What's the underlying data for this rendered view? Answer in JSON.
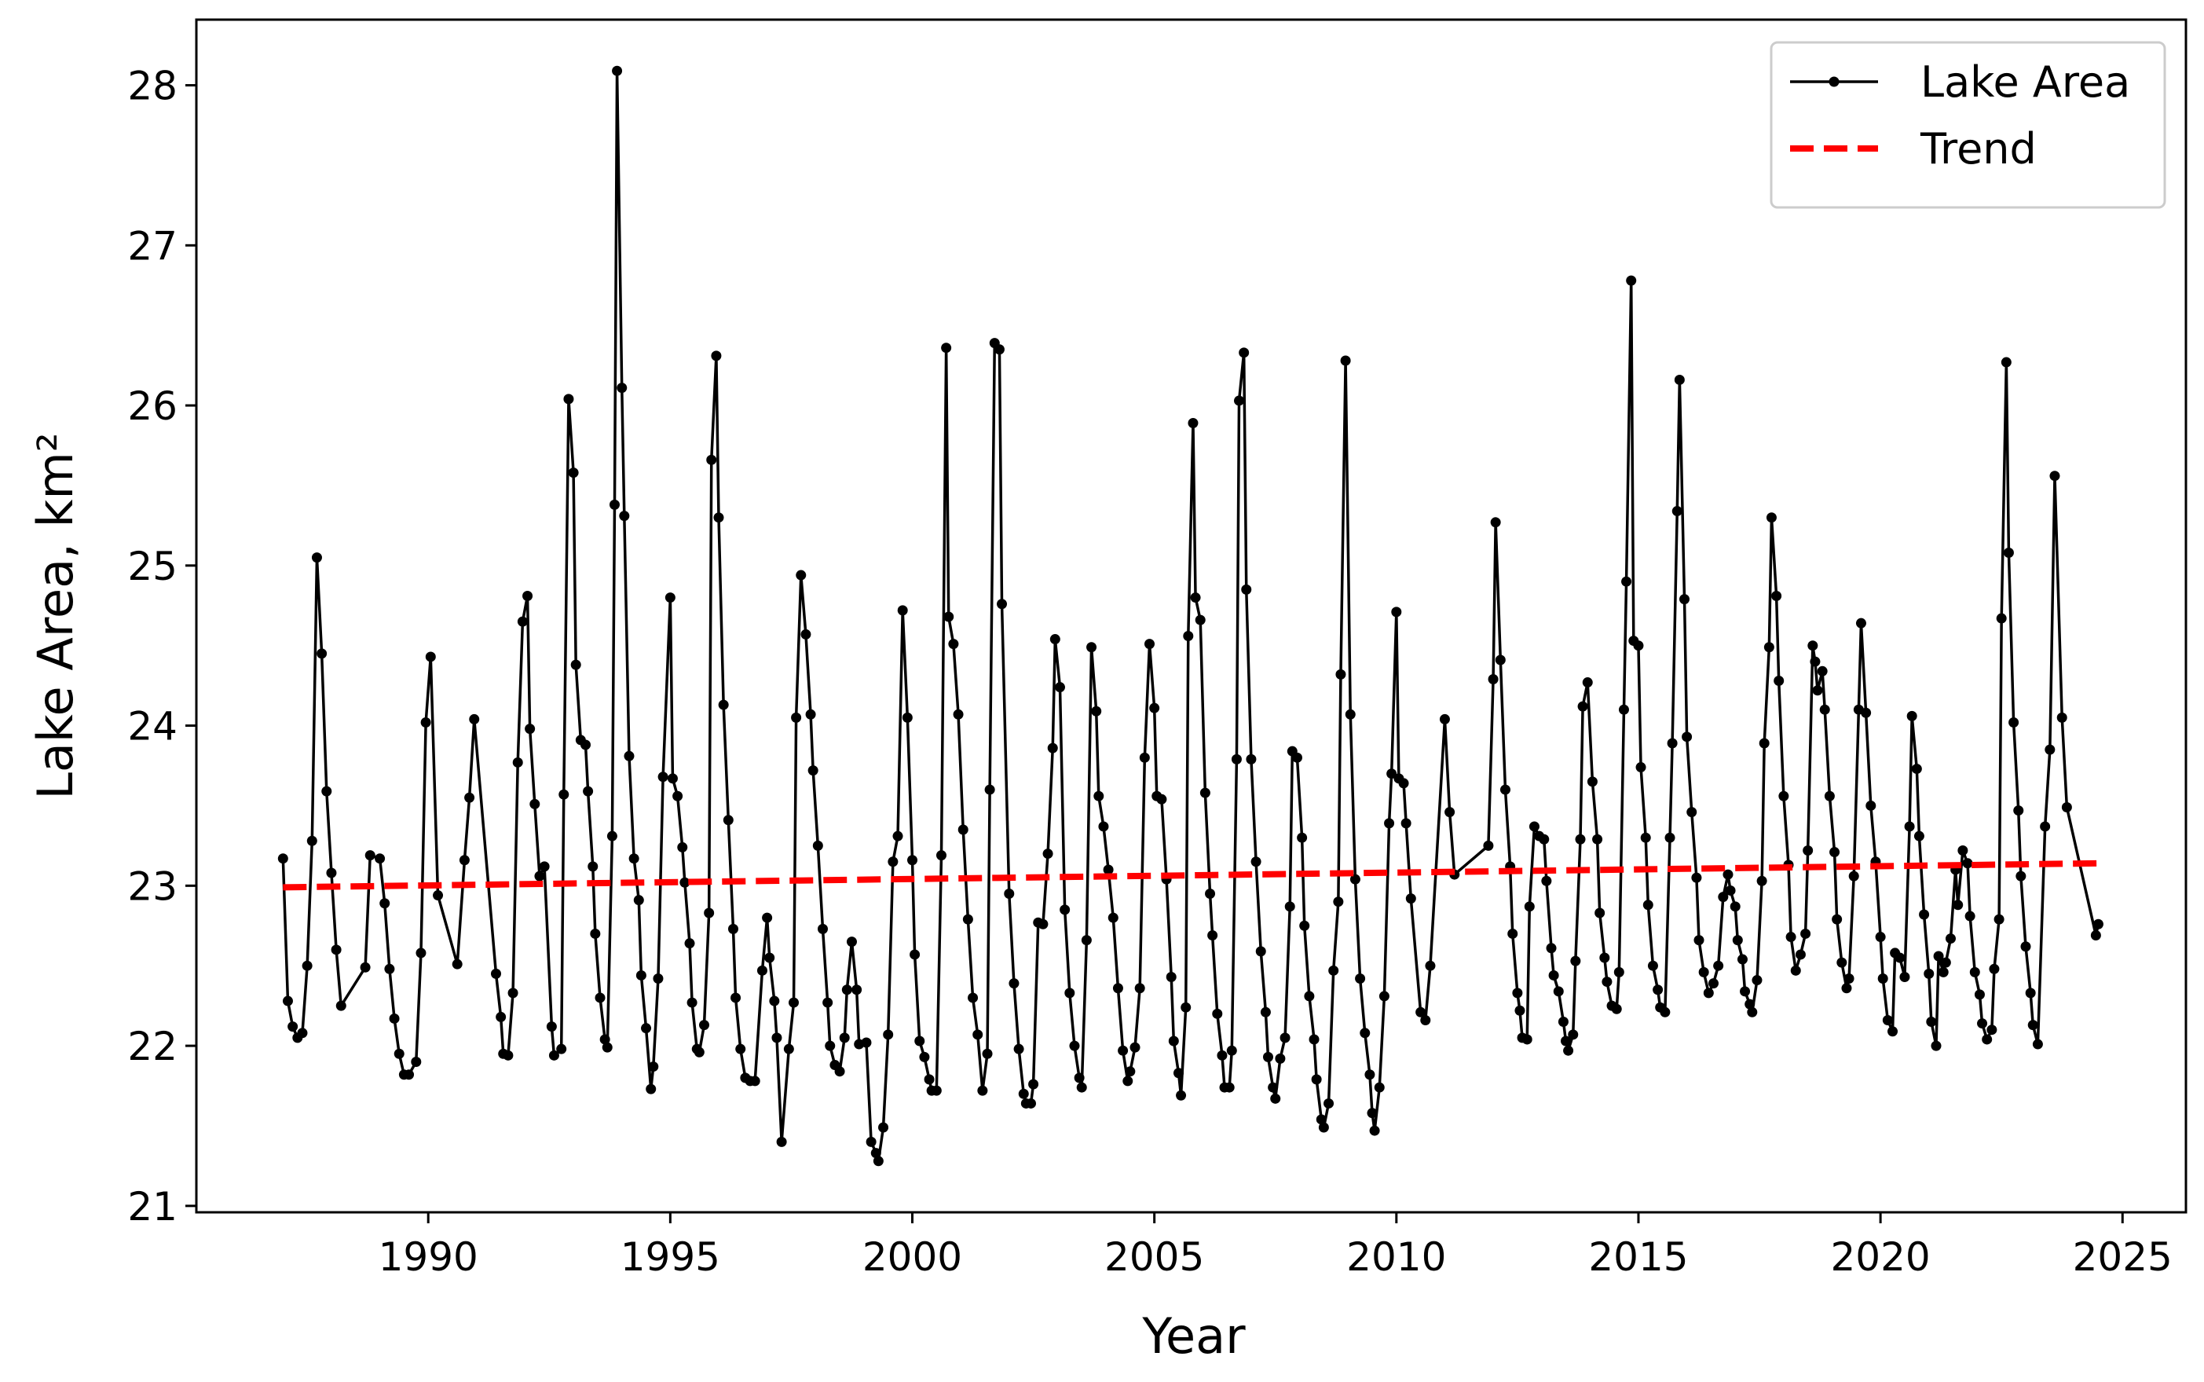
{
  "chart_data": {
    "type": "line",
    "xlabel": "Year",
    "ylabel": "Lake Area, km²",
    "xlim": [
      1985.21,
      2026.31
    ],
    "ylim": [
      20.96,
      28.41
    ],
    "xticks": [
      1990,
      1995,
      2000,
      2005,
      2010,
      2015,
      2020,
      2025
    ],
    "yticks": [
      21,
      22,
      23,
      24,
      25,
      26,
      27,
      28
    ],
    "legend": "upper right",
    "series": [
      {
        "name": "Lake Area",
        "color": "#000000",
        "marker": "o",
        "linestyle": "solid",
        "x": [
          1987.0,
          1987.1,
          1987.2,
          1987.3,
          1987.4,
          1987.5,
          1987.6,
          1987.7,
          1987.8,
          1987.9,
          1988.0,
          1988.1,
          1988.2,
          1988.7,
          1988.8,
          1989.0,
          1989.1,
          1989.2,
          1989.3,
          1989.4,
          1989.5,
          1989.6,
          1989.75,
          1989.85,
          1989.95,
          1990.05,
          1990.2,
          1990.6,
          1990.75,
          1990.85,
          1990.95,
          1991.4,
          1991.5,
          1991.55,
          1991.65,
          1991.75,
          1991.85,
          1991.95,
          1992.05,
          1992.1,
          1992.2,
          1992.3,
          1992.4,
          1992.55,
          1992.6,
          1992.75,
          1992.8,
          1992.9,
          1993.0,
          1993.05,
          1993.15,
          1993.25,
          1993.3,
          1993.4,
          1993.45,
          1993.55,
          1993.65,
          1993.7,
          1993.8,
          1993.85,
          1993.9,
          1994.0,
          1994.05,
          1994.15,
          1994.25,
          1994.35,
          1994.4,
          1994.5,
          1994.6,
          1994.65,
          1994.75,
          1994.85,
          1995.0,
          1995.05,
          1995.15,
          1995.25,
          1995.3,
          1995.4,
          1995.45,
          1995.55,
          1995.6,
          1995.7,
          1995.8,
          1995.85,
          1995.95,
          1996.0,
          1996.1,
          1996.2,
          1996.3,
          1996.35,
          1996.45,
          1996.55,
          1996.65,
          1996.75,
          1996.9,
          1997.0,
          1997.05,
          1997.15,
          1997.2,
          1997.3,
          1997.45,
          1997.55,
          1997.6,
          1997.7,
          1997.8,
          1997.9,
          1997.95,
          1998.05,
          1998.15,
          1998.25,
          1998.3,
          1998.4,
          1998.5,
          1998.6,
          1998.65,
          1998.75,
          1998.85,
          1998.9,
          1999.05,
          1999.15,
          1999.25,
          1999.3,
          1999.4,
          1999.5,
          1999.6,
          1999.7,
          1999.8,
          1999.9,
          2000.0,
          2000.05,
          2000.15,
          2000.25,
          2000.35,
          2000.4,
          2000.5,
          2000.6,
          2000.7,
          2000.75,
          2000.85,
          2000.95,
          2001.05,
          2001.15,
          2001.25,
          2001.35,
          2001.45,
          2001.55,
          2001.6,
          2001.7,
          2001.8,
          2001.85,
          2002.0,
          2002.1,
          2002.2,
          2002.3,
          2002.35,
          2002.45,
          2002.5,
          2002.6,
          2002.7,
          2002.8,
          2002.9,
          2002.95,
          2003.05,
          2003.15,
          2003.25,
          2003.35,
          2003.45,
          2003.5,
          2003.6,
          2003.7,
          2003.8,
          2003.85,
          2003.95,
          2004.05,
          2004.15,
          2004.25,
          2004.35,
          2004.45,
          2004.5,
          2004.6,
          2004.7,
          2004.8,
          2004.9,
          2005.0,
          2005.05,
          2005.15,
          2005.25,
          2005.35,
          2005.4,
          2005.5,
          2005.55,
          2005.65,
          2005.7,
          2005.8,
          2005.85,
          2005.95,
          2006.05,
          2006.15,
          2006.2,
          2006.3,
          2006.4,
          2006.45,
          2006.55,
          2006.6,
          2006.7,
          2006.75,
          2006.85,
          2006.9,
          2007.0,
          2007.1,
          2007.2,
          2007.3,
          2007.35,
          2007.45,
          2007.5,
          2007.6,
          2007.7,
          2007.8,
          2007.85,
          2007.95,
          2008.05,
          2008.1,
          2008.2,
          2008.3,
          2008.35,
          2008.45,
          2008.5,
          2008.6,
          2008.7,
          2008.8,
          2008.85,
          2008.95,
          2009.05,
          2009.15,
          2009.25,
          2009.35,
          2009.45,
          2009.5,
          2009.55,
          2009.65,
          2009.75,
          2009.85,
          2009.9,
          2010.0,
          2010.05,
          2010.15,
          2010.2,
          2010.3,
          2010.5,
          2010.6,
          2010.7,
          2011.0,
          2011.1,
          2011.2,
          2011.9,
          2012.0,
          2012.05,
          2012.15,
          2012.25,
          2012.35,
          2012.4,
          2012.5,
          2012.55,
          2012.6,
          2012.7,
          2012.75,
          2012.85,
          2012.95,
          2013.05,
          2013.1,
          2013.2,
          2013.25,
          2013.35,
          2013.45,
          2013.5,
          2013.55,
          2013.65,
          2013.7,
          2013.8,
          2013.85,
          2013.95,
          2014.05,
          2014.15,
          2014.2,
          2014.3,
          2014.35,
          2014.45,
          2014.55,
          2014.6,
          2014.7,
          2014.75,
          2014.85,
          2014.9,
          2015.0,
          2015.05,
          2015.15,
          2015.2,
          2015.3,
          2015.4,
          2015.45,
          2015.55,
          2015.65,
          2015.7,
          2015.8,
          2015.85,
          2015.95,
          2016.0,
          2016.1,
          2016.2,
          2016.25,
          2016.35,
          2016.45,
          2016.55,
          2016.65,
          2016.75,
          2016.85,
          2016.9,
          2017.0,
          2017.05,
          2017.15,
          2017.2,
          2017.3,
          2017.35,
          2017.45,
          2017.55,
          2017.6,
          2017.7,
          2017.75,
          2017.85,
          2017.9,
          2018.0,
          2018.1,
          2018.15,
          2018.25,
          2018.35,
          2018.45,
          2018.5,
          2018.6,
          2018.65,
          2018.7,
          2018.8,
          2018.85,
          2018.95,
          2019.05,
          2019.1,
          2019.2,
          2019.3,
          2019.35,
          2019.45,
          2019.55,
          2019.6,
          2019.7,
          2019.8,
          2019.9,
          2020.0,
          2020.05,
          2020.15,
          2020.25,
          2020.3,
          2020.4,
          2020.5,
          2020.6,
          2020.65,
          2020.75,
          2020.8,
          2020.9,
          2021.0,
          2021.05,
          2021.15,
          2021.2,
          2021.3,
          2021.35,
          2021.45,
          2021.55,
          2021.6,
          2021.7,
          2021.8,
          2021.85,
          2021.95,
          2022.05,
          2022.1,
          2022.2,
          2022.3,
          2022.35,
          2022.45,
          2022.5,
          2022.6,
          2022.65,
          2022.75,
          2022.85,
          2022.9,
          2023.0,
          2023.1,
          2023.15,
          2023.25,
          2023.4,
          2023.5,
          2023.6,
          2023.75,
          2023.85,
          2024.45,
          2024.5
        ],
        "values": [
          23.17,
          22.28,
          22.12,
          22.05,
          22.08,
          22.5,
          23.28,
          25.05,
          24.45,
          23.59,
          23.08,
          22.6,
          22.25,
          22.49,
          23.19,
          23.17,
          22.89,
          22.48,
          22.17,
          21.95,
          21.82,
          21.82,
          21.9,
          22.58,
          24.02,
          24.43,
          22.94,
          22.51,
          23.16,
          23.55,
          24.04,
          22.45,
          22.18,
          21.95,
          21.94,
          22.33,
          23.77,
          24.65,
          24.81,
          23.98,
          23.51,
          23.06,
          23.12,
          22.12,
          21.94,
          21.98,
          23.57,
          26.04,
          25.58,
          24.38,
          23.91,
          23.88,
          23.59,
          23.12,
          22.7,
          22.3,
          22.04,
          21.99,
          23.31,
          25.38,
          28.09,
          26.11,
          25.31,
          23.81,
          23.17,
          22.91,
          22.44,
          22.11,
          21.73,
          21.87,
          22.42,
          23.68,
          24.8,
          23.67,
          23.56,
          23.24,
          23.02,
          22.64,
          22.27,
          21.98,
          21.96,
          22.13,
          22.83,
          25.66,
          26.31,
          25.3,
          24.13,
          23.41,
          22.73,
          22.3,
          21.98,
          21.8,
          21.78,
          21.78,
          22.47,
          22.8,
          22.55,
          22.28,
          22.05,
          21.4,
          21.98,
          22.27,
          24.05,
          24.94,
          24.57,
          24.07,
          23.72,
          23.25,
          22.73,
          22.27,
          22.0,
          21.88,
          21.84,
          22.05,
          22.35,
          22.65,
          22.35,
          22.01,
          22.02,
          21.4,
          21.33,
          21.28,
          21.49,
          22.07,
          23.15,
          23.31,
          24.72,
          24.05,
          23.16,
          22.57,
          22.03,
          21.93,
          21.79,
          21.72,
          21.72,
          23.19,
          26.36,
          24.68,
          24.51,
          24.07,
          23.35,
          22.79,
          22.3,
          22.07,
          21.72,
          21.95,
          23.6,
          26.39,
          26.35,
          24.76,
          22.95,
          22.39,
          21.98,
          21.7,
          21.64,
          21.64,
          21.76,
          22.77,
          22.76,
          23.2,
          23.86,
          24.54,
          24.24,
          22.85,
          22.33,
          22.0,
          21.8,
          21.74,
          22.66,
          24.49,
          24.09,
          23.56,
          23.37,
          23.1,
          22.8,
          22.36,
          21.97,
          21.78,
          21.84,
          21.99,
          22.36,
          23.8,
          24.51,
          24.11,
          23.56,
          23.54,
          23.04,
          22.43,
          22.03,
          21.83,
          21.69,
          22.24,
          24.56,
          25.89,
          24.8,
          24.66,
          23.58,
          22.95,
          22.69,
          22.2,
          21.94,
          21.74,
          21.74,
          21.97,
          23.79,
          26.03,
          26.33,
          24.85,
          23.79,
          23.15,
          22.59,
          22.21,
          21.93,
          21.74,
          21.67,
          21.92,
          22.05,
          22.87,
          23.84,
          23.8,
          23.3,
          22.75,
          22.31,
          22.04,
          21.79,
          21.54,
          21.49,
          21.64,
          22.47,
          22.9,
          24.32,
          26.28,
          24.07,
          23.04,
          22.42,
          22.08,
          21.82,
          21.58,
          21.47,
          21.74,
          22.31,
          23.39,
          23.7,
          24.71,
          23.67,
          23.64,
          23.39,
          22.92,
          22.21,
          22.16,
          22.5,
          24.04,
          23.46,
          23.07,
          23.25,
          24.29,
          25.27,
          24.41,
          23.6,
          23.12,
          22.7,
          22.33,
          22.22,
          22.05,
          22.04,
          22.87,
          23.37,
          23.31,
          23.29,
          23.03,
          22.61,
          22.44,
          22.34,
          22.15,
          22.03,
          21.97,
          22.07,
          22.53,
          23.29,
          24.12,
          24.27,
          23.65,
          23.29,
          22.83,
          22.55,
          22.4,
          22.25,
          22.23,
          22.46,
          24.1,
          24.9,
          26.78,
          24.53,
          24.5,
          23.74,
          23.3,
          22.88,
          22.5,
          22.35,
          22.24,
          22.21,
          23.3,
          23.89,
          25.34,
          26.16,
          24.79,
          23.93,
          23.46,
          23.05,
          22.66,
          22.46,
          22.33,
          22.39,
          22.5,
          22.93,
          23.07,
          22.97,
          22.87,
          22.66,
          22.54,
          22.34,
          22.26,
          22.21,
          22.41,
          23.03,
          23.89,
          24.49,
          25.3,
          24.81,
          24.28,
          23.56,
          23.13,
          22.68,
          22.47,
          22.57,
          22.7,
          23.22,
          24.5,
          24.4,
          24.22,
          24.34,
          24.1,
          23.56,
          23.21,
          22.79,
          22.52,
          22.36,
          22.42,
          23.06,
          24.1,
          24.64,
          24.08,
          23.5,
          23.15,
          22.68,
          22.42,
          22.16,
          22.09,
          22.58,
          22.55,
          22.43,
          23.37,
          24.06,
          23.73,
          23.31,
          22.82,
          22.45,
          22.15,
          22.0,
          22.56,
          22.46,
          22.52,
          22.67,
          23.1,
          22.88,
          23.22,
          23.14,
          22.81,
          22.46,
          22.32,
          22.14,
          22.04,
          22.1,
          22.48,
          22.79,
          24.67,
          26.27,
          25.08,
          24.02,
          23.47,
          23.06,
          22.62,
          22.33,
          22.13,
          22.01,
          23.37,
          23.85,
          25.56,
          24.05,
          23.49,
          22.69,
          22.76
        ]
      },
      {
        "name": "Trend",
        "color": "#ff0000",
        "linestyle": "dashed",
        "x": [
          1987.0,
          2024.5
        ],
        "values": [
          22.99,
          23.14
        ]
      }
    ]
  }
}
